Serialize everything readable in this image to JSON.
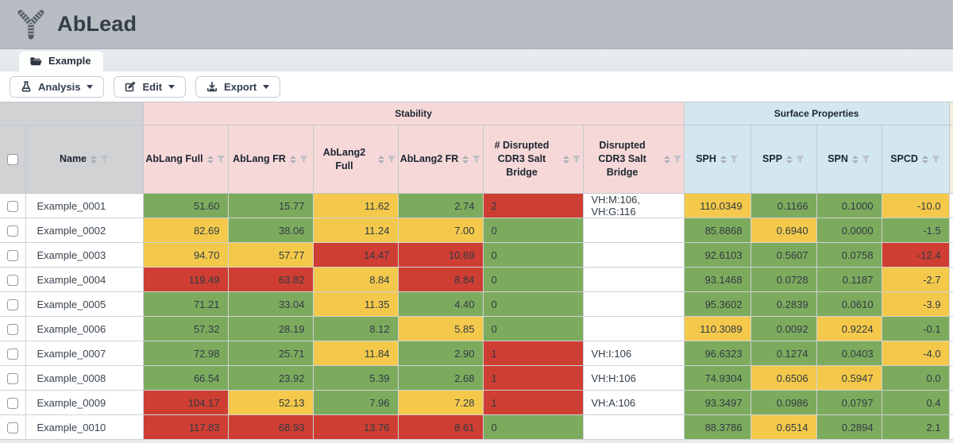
{
  "app": {
    "title": "AbLead",
    "logo_icon": "antibody-icon"
  },
  "tab_bar": {
    "tabs": [
      {
        "label": "Example",
        "icon": "folder-open-icon",
        "active": true
      }
    ]
  },
  "toolbar": {
    "buttons": [
      {
        "label": "Analysis",
        "icon": "flask-icon"
      },
      {
        "label": "Edit",
        "icon": "edit-icon"
      },
      {
        "label": "Export",
        "icon": "download-icon"
      }
    ]
  },
  "colors": {
    "green": "#7dab5e",
    "yellow": "#f4c94b",
    "red": "#ce3e33",
    "white": "#ffffff",
    "stability": "#f6d8d8",
    "surface": "#d3e7ef",
    "plain": "#d0d2d4",
    "extra": "#f3eddc"
  },
  "table": {
    "groups": [
      {
        "label": "Stability",
        "span": 6,
        "color": "stability"
      },
      {
        "label": "Surface Properties",
        "span": 4,
        "color": "surface"
      }
    ],
    "columns": [
      {
        "label": "Name",
        "group": "plain",
        "align": "left"
      },
      {
        "label": "AbLang Full",
        "group": "stability",
        "align": "right"
      },
      {
        "label": "AbLang FR",
        "group": "stability",
        "align": "right"
      },
      {
        "label": "AbLang2 Full",
        "group": "stability",
        "align": "right"
      },
      {
        "label": "AbLang2 FR",
        "group": "stability",
        "align": "right"
      },
      {
        "label": "# Disrupted CDR3 Salt Bridge",
        "group": "stability",
        "align": "left"
      },
      {
        "label": "Disrupted CDR3 Salt Bridge",
        "group": "stability",
        "align": "left"
      },
      {
        "label": "SPH",
        "group": "surface",
        "align": "right"
      },
      {
        "label": "SPP",
        "group": "surface",
        "align": "right"
      },
      {
        "label": "SPN",
        "group": "surface",
        "align": "right"
      },
      {
        "label": "SPCD",
        "group": "surface",
        "align": "right"
      }
    ],
    "rows": [
      {
        "name": "Example_0001",
        "cells": [
          {
            "v": "51.60",
            "c": "green"
          },
          {
            "v": "15.77",
            "c": "green"
          },
          {
            "v": "11.62",
            "c": "yellow"
          },
          {
            "v": "2.74",
            "c": "green"
          },
          {
            "v": "2",
            "c": "red"
          },
          {
            "v": "VH:M:106, VH:G:116",
            "c": "white"
          },
          {
            "v": "110.0349",
            "c": "yellow"
          },
          {
            "v": "0.1166",
            "c": "green"
          },
          {
            "v": "0.1000",
            "c": "green"
          },
          {
            "v": "-10.0",
            "c": "yellow"
          }
        ]
      },
      {
        "name": "Example_0002",
        "cells": [
          {
            "v": "82.69",
            "c": "yellow"
          },
          {
            "v": "38.06",
            "c": "green"
          },
          {
            "v": "11.24",
            "c": "yellow"
          },
          {
            "v": "7.00",
            "c": "yellow"
          },
          {
            "v": "0",
            "c": "green"
          },
          {
            "v": "",
            "c": "white"
          },
          {
            "v": "85.8868",
            "c": "green"
          },
          {
            "v": "0.6940",
            "c": "yellow"
          },
          {
            "v": "0.0000",
            "c": "green"
          },
          {
            "v": "-1.5",
            "c": "green"
          }
        ]
      },
      {
        "name": "Example_0003",
        "cells": [
          {
            "v": "94.70",
            "c": "yellow"
          },
          {
            "v": "57.77",
            "c": "yellow"
          },
          {
            "v": "14.47",
            "c": "red"
          },
          {
            "v": "10.69",
            "c": "red"
          },
          {
            "v": "0",
            "c": "green"
          },
          {
            "v": "",
            "c": "white"
          },
          {
            "v": "92.6103",
            "c": "green"
          },
          {
            "v": "0.5607",
            "c": "green"
          },
          {
            "v": "0.0758",
            "c": "green"
          },
          {
            "v": "-12.4",
            "c": "red"
          }
        ]
      },
      {
        "name": "Example_0004",
        "cells": [
          {
            "v": "119.49",
            "c": "red"
          },
          {
            "v": "63.82",
            "c": "red"
          },
          {
            "v": "8.84",
            "c": "yellow"
          },
          {
            "v": "8.84",
            "c": "red"
          },
          {
            "v": "0",
            "c": "green"
          },
          {
            "v": "",
            "c": "white"
          },
          {
            "v": "93.1468",
            "c": "green"
          },
          {
            "v": "0.0728",
            "c": "green"
          },
          {
            "v": "0.1187",
            "c": "green"
          },
          {
            "v": "-2.7",
            "c": "yellow"
          }
        ]
      },
      {
        "name": "Example_0005",
        "cells": [
          {
            "v": "71.21",
            "c": "green"
          },
          {
            "v": "33.04",
            "c": "green"
          },
          {
            "v": "11.35",
            "c": "yellow"
          },
          {
            "v": "4.40",
            "c": "green"
          },
          {
            "v": "0",
            "c": "green"
          },
          {
            "v": "",
            "c": "white"
          },
          {
            "v": "95.3602",
            "c": "green"
          },
          {
            "v": "0.2839",
            "c": "green"
          },
          {
            "v": "0.0610",
            "c": "green"
          },
          {
            "v": "-3.9",
            "c": "yellow"
          }
        ]
      },
      {
        "name": "Example_0006",
        "cells": [
          {
            "v": "57.32",
            "c": "green"
          },
          {
            "v": "28.19",
            "c": "green"
          },
          {
            "v": "8.12",
            "c": "green"
          },
          {
            "v": "5.85",
            "c": "yellow"
          },
          {
            "v": "0",
            "c": "green"
          },
          {
            "v": "",
            "c": "white"
          },
          {
            "v": "110.3089",
            "c": "yellow"
          },
          {
            "v": "0.0092",
            "c": "green"
          },
          {
            "v": "0.9224",
            "c": "yellow"
          },
          {
            "v": "-0.1",
            "c": "green"
          }
        ]
      },
      {
        "name": "Example_0007",
        "cells": [
          {
            "v": "72.98",
            "c": "green"
          },
          {
            "v": "25.71",
            "c": "green"
          },
          {
            "v": "11.84",
            "c": "yellow"
          },
          {
            "v": "2.90",
            "c": "green"
          },
          {
            "v": "1",
            "c": "red"
          },
          {
            "v": "VH:I:106",
            "c": "white"
          },
          {
            "v": "96.6323",
            "c": "green"
          },
          {
            "v": "0.1274",
            "c": "green"
          },
          {
            "v": "0.0403",
            "c": "green"
          },
          {
            "v": "-4.0",
            "c": "yellow"
          }
        ]
      },
      {
        "name": "Example_0008",
        "cells": [
          {
            "v": "66.54",
            "c": "green"
          },
          {
            "v": "23.92",
            "c": "green"
          },
          {
            "v": "5.39",
            "c": "green"
          },
          {
            "v": "2.68",
            "c": "green"
          },
          {
            "v": "1",
            "c": "red"
          },
          {
            "v": "VH:H:106",
            "c": "white"
          },
          {
            "v": "74.9304",
            "c": "green"
          },
          {
            "v": "0.6506",
            "c": "yellow"
          },
          {
            "v": "0.5947",
            "c": "yellow"
          },
          {
            "v": "0.0",
            "c": "green"
          }
        ]
      },
      {
        "name": "Example_0009",
        "cells": [
          {
            "v": "104.17",
            "c": "red"
          },
          {
            "v": "52.13",
            "c": "yellow"
          },
          {
            "v": "7.96",
            "c": "green"
          },
          {
            "v": "7.28",
            "c": "yellow"
          },
          {
            "v": "1",
            "c": "red"
          },
          {
            "v": "VH:A:106",
            "c": "white"
          },
          {
            "v": "93.3497",
            "c": "green"
          },
          {
            "v": "0.0986",
            "c": "green"
          },
          {
            "v": "0.0797",
            "c": "green"
          },
          {
            "v": "0.4",
            "c": "green"
          }
        ]
      },
      {
        "name": "Example_0010",
        "cells": [
          {
            "v": "117.83",
            "c": "red"
          },
          {
            "v": "68.93",
            "c": "red"
          },
          {
            "v": "13.76",
            "c": "red"
          },
          {
            "v": "8.61",
            "c": "red"
          },
          {
            "v": "0",
            "c": "green"
          },
          {
            "v": "",
            "c": "white"
          },
          {
            "v": "88.3786",
            "c": "green"
          },
          {
            "v": "0.6514",
            "c": "yellow"
          },
          {
            "v": "0.2894",
            "c": "green"
          },
          {
            "v": "2.1",
            "c": "green"
          }
        ]
      }
    ]
  }
}
